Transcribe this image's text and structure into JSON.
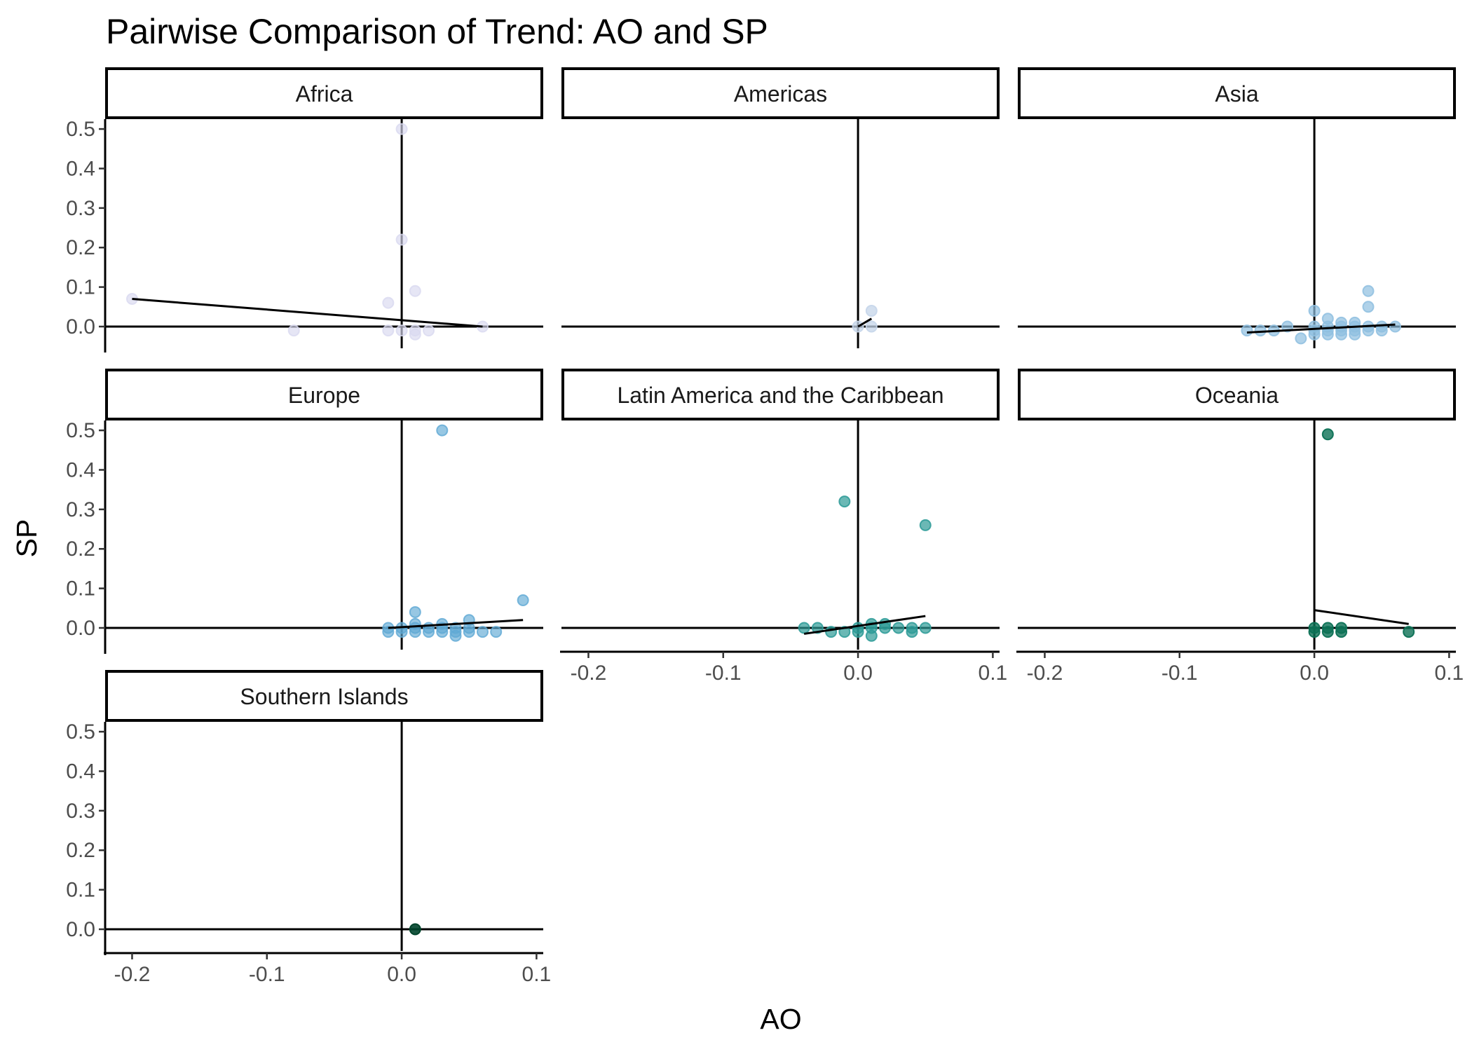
{
  "chart_data": {
    "type": "scatter",
    "title": "Pairwise Comparison of Trend: AO and SP",
    "xlabel": "AO",
    "ylabel": "SP",
    "xlim": [
      -0.22,
      0.105
    ],
    "ylim": [
      -0.055,
      0.525
    ],
    "x_ticks": [
      -0.2,
      -0.1,
      0.0,
      0.1
    ],
    "x_tick_labels": [
      "-0.2",
      "-0.1",
      "0.0",
      "0.1"
    ],
    "y_ticks": [
      0.0,
      0.1,
      0.2,
      0.3,
      0.4,
      0.5
    ],
    "y_tick_labels": [
      "0.0",
      "0.1",
      "0.2",
      "0.3",
      "0.4",
      "0.5"
    ],
    "grid": false,
    "legend": "none",
    "reference_lines": {
      "x": 0.0,
      "y": 0.0
    },
    "facets": [
      {
        "name": "Africa",
        "color": "#d9d9f0",
        "point_opacity": 0.65,
        "fit_line": {
          "x": [
            -0.2,
            0.06
          ],
          "y": [
            0.07,
            0.0
          ]
        },
        "points": [
          {
            "x": -0.2,
            "y": 0.07
          },
          {
            "x": -0.08,
            "y": -0.01
          },
          {
            "x": -0.01,
            "y": 0.06
          },
          {
            "x": -0.01,
            "y": -0.01
          },
          {
            "x": 0.0,
            "y": 0.5
          },
          {
            "x": 0.0,
            "y": 0.22
          },
          {
            "x": 0.0,
            "y": -0.01
          },
          {
            "x": 0.01,
            "y": 0.09
          },
          {
            "x": 0.01,
            "y": -0.02
          },
          {
            "x": 0.01,
            "y": -0.01
          },
          {
            "x": 0.02,
            "y": -0.01
          },
          {
            "x": 0.06,
            "y": 0.0
          }
        ]
      },
      {
        "name": "Americas",
        "color": "#c6d6ea",
        "point_opacity": 0.75,
        "fit_line": {
          "x": [
            0.0,
            0.01
          ],
          "y": [
            0.0,
            0.02
          ]
        },
        "points": [
          {
            "x": 0.0,
            "y": 0.0
          },
          {
            "x": 0.01,
            "y": 0.04
          },
          {
            "x": 0.01,
            "y": 0.0
          }
        ]
      },
      {
        "name": "Asia",
        "color": "#8fbfe0",
        "point_opacity": 0.7,
        "fit_line": {
          "x": [
            -0.05,
            0.06
          ],
          "y": [
            -0.015,
            0.005
          ]
        },
        "points": [
          {
            "x": -0.05,
            "y": -0.01
          },
          {
            "x": -0.04,
            "y": -0.01
          },
          {
            "x": -0.03,
            "y": -0.01
          },
          {
            "x": -0.02,
            "y": 0.0
          },
          {
            "x": -0.01,
            "y": -0.03
          },
          {
            "x": 0.0,
            "y": 0.04
          },
          {
            "x": 0.0,
            "y": 0.0
          },
          {
            "x": 0.0,
            "y": -0.02
          },
          {
            "x": 0.0,
            "y": -0.01
          },
          {
            "x": 0.01,
            "y": 0.02
          },
          {
            "x": 0.01,
            "y": 0.0
          },
          {
            "x": 0.01,
            "y": -0.02
          },
          {
            "x": 0.01,
            "y": -0.01
          },
          {
            "x": 0.02,
            "y": 0.01
          },
          {
            "x": 0.02,
            "y": 0.0
          },
          {
            "x": 0.02,
            "y": -0.02
          },
          {
            "x": 0.02,
            "y": -0.01
          },
          {
            "x": 0.03,
            "y": 0.01
          },
          {
            "x": 0.03,
            "y": 0.0
          },
          {
            "x": 0.03,
            "y": -0.02
          },
          {
            "x": 0.03,
            "y": -0.01
          },
          {
            "x": 0.04,
            "y": 0.09
          },
          {
            "x": 0.04,
            "y": 0.05
          },
          {
            "x": 0.04,
            "y": 0.0
          },
          {
            "x": 0.04,
            "y": -0.01
          },
          {
            "x": 0.05,
            "y": 0.0
          },
          {
            "x": 0.05,
            "y": -0.01
          },
          {
            "x": 0.06,
            "y": 0.0
          }
        ]
      },
      {
        "name": "Europe",
        "color": "#5fa9d4",
        "point_opacity": 0.65,
        "fit_line": {
          "x": [
            -0.01,
            0.09
          ],
          "y": [
            0.0,
            0.02
          ]
        },
        "points": [
          {
            "x": -0.01,
            "y": 0.0
          },
          {
            "x": -0.01,
            "y": -0.01
          },
          {
            "x": 0.0,
            "y": 0.0
          },
          {
            "x": 0.0,
            "y": -0.01
          },
          {
            "x": 0.01,
            "y": 0.04
          },
          {
            "x": 0.01,
            "y": 0.01
          },
          {
            "x": 0.01,
            "y": 0.0
          },
          {
            "x": 0.01,
            "y": -0.01
          },
          {
            "x": 0.02,
            "y": 0.0
          },
          {
            "x": 0.02,
            "y": -0.01
          },
          {
            "x": 0.03,
            "y": 0.5
          },
          {
            "x": 0.03,
            "y": 0.01
          },
          {
            "x": 0.03,
            "y": 0.0
          },
          {
            "x": 0.03,
            "y": -0.01
          },
          {
            "x": 0.04,
            "y": 0.0
          },
          {
            "x": 0.04,
            "y": -0.01
          },
          {
            "x": 0.04,
            "y": -0.02
          },
          {
            "x": 0.05,
            "y": 0.02
          },
          {
            "x": 0.05,
            "y": 0.0
          },
          {
            "x": 0.05,
            "y": -0.01
          },
          {
            "x": 0.06,
            "y": -0.01
          },
          {
            "x": 0.07,
            "y": -0.01
          },
          {
            "x": 0.09,
            "y": 0.07
          }
        ]
      },
      {
        "name": "Latin America and the Caribbean",
        "color": "#2c9a96",
        "point_opacity": 0.7,
        "fit_line": {
          "x": [
            -0.04,
            0.05
          ],
          "y": [
            -0.015,
            0.03
          ]
        },
        "points": [
          {
            "x": -0.04,
            "y": 0.0
          },
          {
            "x": -0.03,
            "y": 0.0
          },
          {
            "x": -0.02,
            "y": -0.01
          },
          {
            "x": -0.01,
            "y": 0.32
          },
          {
            "x": -0.01,
            "y": -0.01
          },
          {
            "x": 0.0,
            "y": 0.0
          },
          {
            "x": 0.0,
            "y": -0.01
          },
          {
            "x": 0.01,
            "y": 0.01
          },
          {
            "x": 0.01,
            "y": 0.0
          },
          {
            "x": 0.01,
            "y": -0.02
          },
          {
            "x": 0.02,
            "y": 0.01
          },
          {
            "x": 0.02,
            "y": 0.0
          },
          {
            "x": 0.03,
            "y": 0.0
          },
          {
            "x": 0.04,
            "y": 0.0
          },
          {
            "x": 0.04,
            "y": -0.01
          },
          {
            "x": 0.05,
            "y": 0.26
          },
          {
            "x": 0.05,
            "y": 0.0
          }
        ]
      },
      {
        "name": "Oceania",
        "color": "#0c7155",
        "point_opacity": 0.8,
        "fit_line": {
          "x": [
            0.0,
            0.07
          ],
          "y": [
            0.045,
            0.01
          ]
        },
        "points": [
          {
            "x": 0.0,
            "y": 0.0
          },
          {
            "x": 0.0,
            "y": -0.01
          },
          {
            "x": 0.01,
            "y": 0.49
          },
          {
            "x": 0.01,
            "y": 0.0
          },
          {
            "x": 0.01,
            "y": -0.01
          },
          {
            "x": 0.02,
            "y": 0.0
          },
          {
            "x": 0.02,
            "y": -0.01
          },
          {
            "x": 0.07,
            "y": -0.01
          }
        ]
      },
      {
        "name": "Southern Islands",
        "color": "#00442b",
        "point_opacity": 0.9,
        "fit_line": null,
        "points": [
          {
            "x": 0.01,
            "y": 0.0
          }
        ]
      }
    ]
  }
}
